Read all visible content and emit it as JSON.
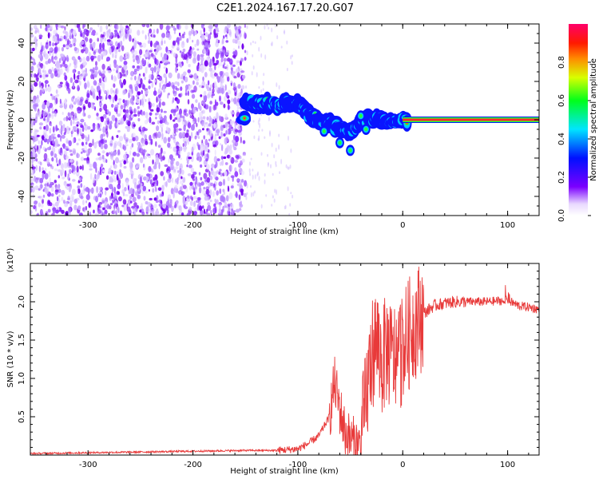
{
  "title": "C2E1.2024.167.17.20.G07",
  "chart_data": [
    {
      "type": "heatmap",
      "xlabel": "Height of straight line (km)",
      "ylabel": "Frequency (Hz)",
      "xlim": [
        -355,
        130
      ],
      "ylim": [
        -50,
        50
      ],
      "xticks": [
        -300,
        -200,
        -100,
        0,
        100
      ],
      "yticks": [
        -40,
        -20,
        0,
        20,
        40
      ],
      "colorbar": {
        "label": "Normalized spectral amplitude",
        "range": [
          0,
          1
        ],
        "ticks": [
          "0.0",
          "0.2",
          "0.4",
          "0.6",
          "0.8"
        ]
      },
      "ridge": [
        {
          "x": -150,
          "y": 9
        },
        {
          "x": -140,
          "y": 8.5
        },
        {
          "x": -130,
          "y": 8.5
        },
        {
          "x": -120,
          "y": 8
        },
        {
          "x": -110,
          "y": 8.5
        },
        {
          "x": -100,
          "y": 8
        },
        {
          "x": -90,
          "y": 3
        },
        {
          "x": -80,
          "y": 0
        },
        {
          "x": -70,
          "y": -2
        },
        {
          "x": -60,
          "y": -5
        },
        {
          "x": -50,
          "y": -6
        },
        {
          "x": -40,
          "y": 0
        },
        {
          "x": -30,
          "y": 0
        },
        {
          "x": -20,
          "y": 0
        },
        {
          "x": -10,
          "y": 0
        },
        {
          "x": 0,
          "y": 0
        },
        {
          "x": 130,
          "y": 0
        }
      ],
      "noise_region": {
        "x_from": -355,
        "x_to": -150
      }
    },
    {
      "type": "line",
      "xlabel": "Height of straight line (km)",
      "ylabel": "SNR (10 * v/v)",
      "scale_label": "(x10⁴)",
      "xlim": [
        -355,
        130
      ],
      "ylim": [
        0,
        2.5
      ],
      "xticks": [
        -300,
        -200,
        -100,
        0,
        100
      ],
      "yticks": [
        "0.5",
        "1.0",
        "1.5",
        "2.0"
      ],
      "color": "#e83a3a",
      "series": [
        {
          "x": [
            -355,
            -300,
            -250,
            -200,
            -150,
            -120,
            -100,
            -90,
            -80,
            -70,
            -65,
            -60,
            -55,
            -50,
            -40,
            -35,
            -30,
            -25,
            -20,
            -15,
            -10,
            -5,
            0,
            10,
            20,
            30,
            40,
            50,
            60,
            80,
            100,
            110,
            120,
            130
          ],
          "values": [
            0.02,
            0.03,
            0.04,
            0.05,
            0.06,
            0.06,
            0.08,
            0.15,
            0.25,
            0.5,
            0.95,
            0.6,
            0.3,
            0.2,
            0.1,
            0.7,
            1.3,
            1.5,
            1.2,
            1.4,
            1.25,
            1.3,
            1.4,
            1.7,
            1.85,
            1.95,
            1.98,
            2.0,
            2.0,
            2.0,
            2.02,
            1.95,
            1.93,
            1.9
          ]
        }
      ]
    }
  ]
}
